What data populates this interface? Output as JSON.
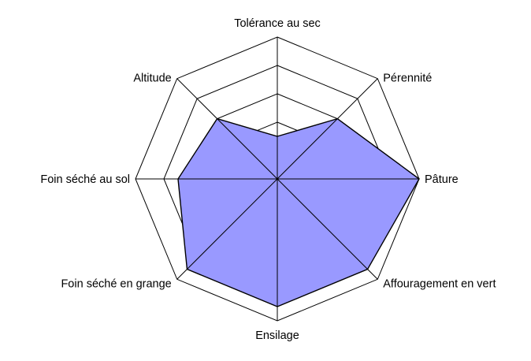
{
  "chart_data": {
    "type": "radar",
    "title": "",
    "axes": [
      "Tolérance au sec",
      "Pérennité",
      "Pâture",
      "Affouragement en vert",
      "Ensilage",
      "Foin séché en grange",
      "Foin séché au sol",
      "Altitude"
    ],
    "range": [
      0,
      5
    ],
    "grid_levels": 5,
    "grid": true,
    "legend": "none",
    "series": [
      {
        "values": [
          1.5,
          3,
          5,
          4.5,
          4.5,
          4.5,
          3.5,
          3
        ],
        "color": "#9999ff"
      }
    ]
  }
}
